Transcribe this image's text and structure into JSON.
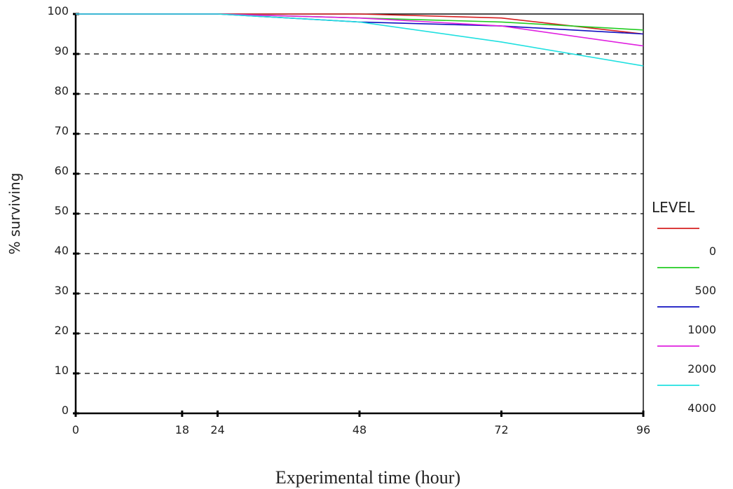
{
  "chart_data": {
    "type": "line",
    "title": "",
    "xlabel": "Experimental time (hour)",
    "ylabel": "% surviving",
    "x_ticks": [
      0,
      18,
      24,
      48,
      72,
      96
    ],
    "y_ticks": [
      0,
      10,
      20,
      30,
      40,
      50,
      60,
      70,
      80,
      90,
      100
    ],
    "xlim": [
      0,
      96
    ],
    "ylim": [
      0,
      100
    ],
    "grid": "horizontal-dashed",
    "legend": {
      "title": "LEVEL",
      "position": "right"
    },
    "series": [
      {
        "name": "0",
        "color": "#d62020",
        "points": [
          [
            0,
            100
          ],
          [
            24,
            100
          ],
          [
            48,
            100
          ],
          [
            72,
            99
          ],
          [
            96,
            95
          ]
        ]
      },
      {
        "name": "500",
        "color": "#22cc22",
        "points": [
          [
            0,
            100
          ],
          [
            24,
            100
          ],
          [
            48,
            99
          ],
          [
            72,
            98
          ],
          [
            96,
            96
          ]
        ]
      },
      {
        "name": "1000",
        "color": "#1010c0",
        "points": [
          [
            0,
            100
          ],
          [
            24,
            100
          ],
          [
            48,
            98
          ],
          [
            72,
            97
          ],
          [
            96,
            95
          ]
        ]
      },
      {
        "name": "2000",
        "color": "#e020e0",
        "points": [
          [
            0,
            100
          ],
          [
            24,
            100
          ],
          [
            48,
            99
          ],
          [
            72,
            97
          ],
          [
            96,
            92
          ]
        ]
      },
      {
        "name": "4000",
        "color": "#20e0e0",
        "points": [
          [
            0,
            100
          ],
          [
            24,
            100
          ],
          [
            48,
            98
          ],
          [
            72,
            93
          ],
          [
            96,
            87
          ]
        ]
      }
    ]
  }
}
